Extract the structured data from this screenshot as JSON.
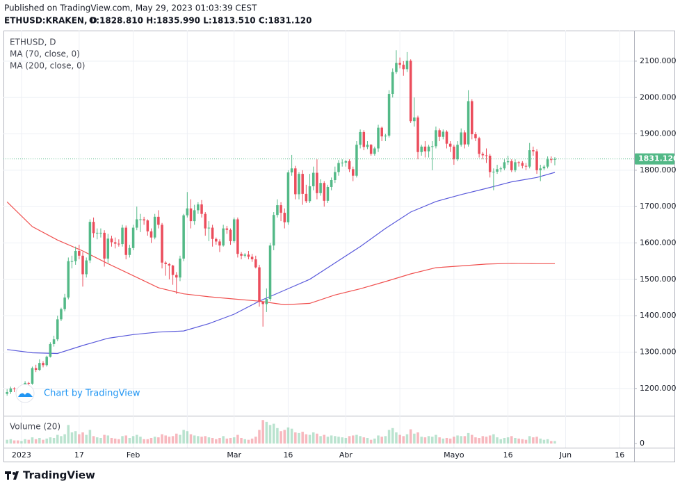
{
  "header": {
    "published": "Published on TradingView.com, May 29, 2023 01:03:39 CEST",
    "symbol": "ETHUSD:KRAKEN, D",
    "ohlc": "O:1828.810 H:1835.990 L:1813.510 C:1831.120"
  },
  "chart_data": {
    "type": "candlestick",
    "legend_symbol": "ETHUSD, D",
    "categories": [
      "2022-12-28",
      "2022-12-29",
      "2022-12-30",
      "2022-12-31",
      "2023-01-01",
      "2023-01-02",
      "2023-01-03",
      "2023-01-04",
      "2023-01-05",
      "2023-01-06",
      "2023-01-07",
      "2023-01-08",
      "2023-01-09",
      "2023-01-10",
      "2023-01-11",
      "2023-01-12",
      "2023-01-13",
      "2023-01-14",
      "2023-01-15",
      "2023-01-16",
      "2023-01-17",
      "2023-01-18",
      "2023-01-19",
      "2023-01-20",
      "2023-01-21",
      "2023-01-22",
      "2023-01-23",
      "2023-01-24",
      "2023-01-25",
      "2023-01-26",
      "2023-01-27",
      "2023-01-28",
      "2023-01-29",
      "2023-01-30",
      "2023-01-31",
      "2023-02-01",
      "2023-02-02",
      "2023-02-03",
      "2023-02-04",
      "2023-02-05",
      "2023-02-06",
      "2023-02-07",
      "2023-02-08",
      "2023-02-09",
      "2023-02-10",
      "2023-02-11",
      "2023-02-12",
      "2023-02-13",
      "2023-02-14",
      "2023-02-15",
      "2023-02-16",
      "2023-02-17",
      "2023-02-18",
      "2023-02-19",
      "2023-02-20",
      "2023-02-21",
      "2023-02-22",
      "2023-02-23",
      "2023-02-24",
      "2023-02-25",
      "2023-02-26",
      "2023-02-27",
      "2023-02-28",
      "2023-03-01",
      "2023-03-02",
      "2023-03-03",
      "2023-03-04",
      "2023-03-05",
      "2023-03-06",
      "2023-03-07",
      "2023-03-08",
      "2023-03-09",
      "2023-03-10",
      "2023-03-11",
      "2023-03-12",
      "2023-03-13",
      "2023-03-14",
      "2023-03-15",
      "2023-03-16",
      "2023-03-17",
      "2023-03-18",
      "2023-03-19",
      "2023-03-20",
      "2023-03-21",
      "2023-03-22",
      "2023-03-23",
      "2023-03-24",
      "2023-03-25",
      "2023-03-26",
      "2023-03-27",
      "2023-03-28",
      "2023-03-29",
      "2023-03-30",
      "2023-03-31",
      "2023-04-01",
      "2023-04-02",
      "2023-04-03",
      "2023-04-04",
      "2023-04-05",
      "2023-04-06",
      "2023-04-07",
      "2023-04-08",
      "2023-04-09",
      "2023-04-10",
      "2023-04-11",
      "2023-04-12",
      "2023-04-13",
      "2023-04-14",
      "2023-04-15",
      "2023-04-16",
      "2023-04-17",
      "2023-04-18",
      "2023-04-19",
      "2023-04-20",
      "2023-04-21",
      "2023-04-22",
      "2023-04-23",
      "2023-04-24",
      "2023-04-25",
      "2023-04-26",
      "2023-04-27",
      "2023-04-28",
      "2023-04-29",
      "2023-04-30",
      "2023-05-01",
      "2023-05-02",
      "2023-05-03",
      "2023-05-04",
      "2023-05-05",
      "2023-05-06",
      "2023-05-07",
      "2023-05-08",
      "2023-05-09",
      "2023-05-10",
      "2023-05-11",
      "2023-05-12",
      "2023-05-13",
      "2023-05-14",
      "2023-05-15",
      "2023-05-16",
      "2023-05-17",
      "2023-05-18",
      "2023-05-19",
      "2023-05-20",
      "2023-05-21",
      "2023-05-22",
      "2023-05-23",
      "2023-05-24",
      "2023-05-25",
      "2023-05-26",
      "2023-05-27",
      "2023-05-28",
      "2023-05-29"
    ],
    "open": [
      1185,
      1190,
      1200,
      1198,
      1196,
      1200,
      1215,
      1213,
      1256,
      1251,
      1270,
      1264,
      1287,
      1322,
      1335,
      1390,
      1418,
      1450,
      1550,
      1550,
      1578,
      1565,
      1514,
      1552,
      1658,
      1627,
      1628,
      1628,
      1557,
      1612,
      1602,
      1598,
      1597,
      1642,
      1567,
      1586,
      1642,
      1665,
      1665,
      1662,
      1632,
      1615,
      1672,
      1650,
      1546,
      1542,
      1538,
      1512,
      1505,
      1557,
      1676,
      1695,
      1660,
      1690,
      1706,
      1680,
      1640,
      1642,
      1611,
      1604,
      1593,
      1640,
      1636,
      1605,
      1665,
      1570,
      1565,
      1568,
      1562,
      1555,
      1533,
      1438,
      1432,
      1446,
      1593,
      1677,
      1704,
      1683,
      1657,
      1794,
      1805,
      1734,
      1790,
      1735,
      1715,
      1756,
      1793,
      1737,
      1765,
      1716,
      1754,
      1773,
      1795,
      1820,
      1821,
      1825,
      1803,
      1785,
      1870,
      1905,
      1864,
      1870,
      1845,
      1860,
      1917,
      1893,
      1895,
      2010,
      2070,
      2095,
      2090,
      2078,
      2101,
      1935,
      1945,
      1850,
      1865,
      1852,
      1865,
      1866,
      1910,
      1892,
      1906,
      1873,
      1865,
      1830,
      1870,
      1904,
      1871,
      1990,
      1899,
      1888,
      1845,
      1841,
      1840,
      1795,
      1796,
      1803,
      1805,
      1822,
      1825,
      1800,
      1822,
      1820,
      1812,
      1810,
      1855,
      1852,
      1800,
      1805,
      1810,
      1830,
      1828.81
    ],
    "high": [
      1198,
      1205,
      1203,
      1200,
      1203,
      1220,
      1218,
      1260,
      1265,
      1280,
      1275,
      1290,
      1327,
      1345,
      1400,
      1422,
      1460,
      1560,
      1565,
      1590,
      1595,
      1575,
      1560,
      1665,
      1670,
      1640,
      1640,
      1635,
      1625,
      1620,
      1615,
      1610,
      1650,
      1648,
      1595,
      1650,
      1700,
      1680,
      1672,
      1665,
      1640,
      1680,
      1690,
      1655,
      1550,
      1545,
      1540,
      1520,
      1565,
      1680,
      1740,
      1720,
      1705,
      1712,
      1718,
      1685,
      1660,
      1650,
      1615,
      1610,
      1650,
      1647,
      1640,
      1670,
      1670,
      1575,
      1572,
      1578,
      1570,
      1565,
      1540,
      1440,
      1475,
      1600,
      1685,
      1720,
      1712,
      1695,
      1800,
      1842,
      1812,
      1795,
      1800,
      1760,
      1790,
      1810,
      1830,
      1775,
      1770,
      1760,
      1780,
      1810,
      1828,
      1830,
      1828,
      1830,
      1810,
      1880,
      1912,
      1910,
      1880,
      1872,
      1865,
      1925,
      1920,
      1900,
      2020,
      2080,
      2130,
      2110,
      2100,
      2125,
      2105,
      2000,
      1950,
      1870,
      1880,
      1870,
      1880,
      1920,
      1915,
      1912,
      1910,
      1880,
      1870,
      1880,
      1915,
      1910,
      2020,
      1995,
      1905,
      1892,
      1850,
      1860,
      1845,
      1805,
      1815,
      1810,
      1830,
      1840,
      1830,
      1830,
      1825,
      1825,
      1820,
      1875,
      1865,
      1858,
      1815,
      1815,
      1838,
      1838,
      1835.99
    ],
    "low": [
      1180,
      1185,
      1190,
      1190,
      1192,
      1195,
      1205,
      1210,
      1245,
      1248,
      1258,
      1260,
      1285,
      1315,
      1330,
      1385,
      1412,
      1445,
      1530,
      1540,
      1555,
      1480,
      1505,
      1545,
      1615,
      1610,
      1615,
      1535,
      1545,
      1590,
      1585,
      1590,
      1590,
      1555,
      1560,
      1580,
      1635,
      1630,
      1650,
      1620,
      1600,
      1610,
      1640,
      1530,
      1510,
      1500,
      1485,
      1460,
      1495,
      1550,
      1670,
      1640,
      1650,
      1680,
      1670,
      1620,
      1605,
      1590,
      1595,
      1575,
      1590,
      1625,
      1595,
      1600,
      1560,
      1555,
      1560,
      1555,
      1548,
      1530,
      1425,
      1370,
      1410,
      1440,
      1580,
      1670,
      1660,
      1640,
      1650,
      1785,
      1720,
      1720,
      1705,
      1710,
      1710,
      1745,
      1720,
      1730,
      1700,
      1710,
      1745,
      1765,
      1785,
      1810,
      1810,
      1795,
      1770,
      1780,
      1860,
      1855,
      1858,
      1840,
      1840,
      1850,
      1880,
      1880,
      1890,
      2000,
      2065,
      2080,
      2060,
      2070,
      1930,
      1920,
      1830,
      1840,
      1835,
      1835,
      1800,
      1860,
      1880,
      1885,
      1860,
      1850,
      1815,
      1825,
      1865,
      1860,
      1865,
      1885,
      1880,
      1835,
      1830,
      1820,
      1780,
      1745,
      1790,
      1795,
      1800,
      1815,
      1795,
      1795,
      1810,
      1805,
      1800,
      1805,
      1840,
      1790,
      1770,
      1800,
      1805,
      1820,
      1813.51
    ],
    "close": [
      1190,
      1200,
      1198,
      1196,
      1200,
      1215,
      1213,
      1256,
      1251,
      1270,
      1264,
      1287,
      1322,
      1335,
      1390,
      1418,
      1450,
      1550,
      1550,
      1578,
      1565,
      1514,
      1552,
      1658,
      1627,
      1628,
      1628,
      1557,
      1612,
      1602,
      1598,
      1597,
      1642,
      1567,
      1586,
      1642,
      1665,
      1665,
      1662,
      1632,
      1615,
      1672,
      1650,
      1546,
      1542,
      1538,
      1512,
      1505,
      1557,
      1676,
      1695,
      1660,
      1690,
      1706,
      1680,
      1640,
      1642,
      1611,
      1604,
      1593,
      1640,
      1636,
      1605,
      1665,
      1570,
      1565,
      1568,
      1562,
      1555,
      1533,
      1438,
      1432,
      1446,
      1593,
      1677,
      1704,
      1683,
      1657,
      1794,
      1805,
      1734,
      1790,
      1735,
      1715,
      1756,
      1793,
      1737,
      1765,
      1716,
      1754,
      1773,
      1795,
      1820,
      1821,
      1825,
      1803,
      1785,
      1870,
      1905,
      1864,
      1870,
      1845,
      1860,
      1917,
      1893,
      1895,
      2010,
      2070,
      2095,
      2090,
      2078,
      2101,
      1935,
      1945,
      1850,
      1865,
      1852,
      1865,
      1866,
      1910,
      1892,
      1906,
      1873,
      1865,
      1830,
      1870,
      1904,
      1871,
      1990,
      1899,
      1888,
      1845,
      1841,
      1840,
      1795,
      1796,
      1803,
      1805,
      1822,
      1825,
      1800,
      1822,
      1820,
      1812,
      1810,
      1855,
      1852,
      1800,
      1805,
      1810,
      1830,
      1828.81,
      1831.12
    ],
    "up_color": "#53b987",
    "down_color": "#eb4d5c",
    "xlim": [
      "2022-12-27",
      "2023-06-20"
    ],
    "xticks": [
      {
        "value": "2023-01-01",
        "label": "2023"
      },
      {
        "value": "2023-01-17",
        "label": "17"
      },
      {
        "value": "2023-02-01",
        "label": "Feb"
      },
      {
        "value": "2023-02-16",
        "label": null
      },
      {
        "value": "2023-03-01",
        "label": "Mar"
      },
      {
        "value": "2023-03-16",
        "label": "16"
      },
      {
        "value": "2023-04-01",
        "label": "Abr"
      },
      {
        "value": "2023-04-16",
        "label": null
      },
      {
        "value": "2023-05-01",
        "label": "Mayo"
      },
      {
        "value": "2023-05-16",
        "label": "16"
      },
      {
        "value": "2023-06-01",
        "label": "Jun"
      },
      {
        "value": "2023-06-16",
        "label": "16"
      }
    ],
    "ylim": [
      1125,
      2184
    ],
    "yticks": [
      {
        "value": 1200,
        "label": "1200.000"
      },
      {
        "value": 1300,
        "label": "1300.000"
      },
      {
        "value": 1400,
        "label": "1400.000"
      },
      {
        "value": 1500,
        "label": "1500.000"
      },
      {
        "value": 1600,
        "label": "1600.000"
      },
      {
        "value": 1700,
        "label": "1700.000"
      },
      {
        "value": 1800,
        "label": "1800.000"
      },
      {
        "value": 1900,
        "label": "1900.000"
      },
      {
        "value": 2000,
        "label": "2000.000"
      },
      {
        "value": 2100,
        "label": "2100.000"
      }
    ],
    "grid": true,
    "price_line": {
      "value": 1831.12,
      "label": "1831.120"
    },
    "overlays": [
      {
        "name": "MA (70, close, 0)",
        "color": "#5a5adb",
        "x": [
          "2022-12-28",
          "2023-01-04",
          "2023-01-11",
          "2023-01-18",
          "2023-01-25",
          "2023-02-01",
          "2023-02-08",
          "2023-02-15",
          "2023-02-22",
          "2023-03-01",
          "2023-03-08",
          "2023-03-15",
          "2023-03-22",
          "2023-03-29",
          "2023-04-05",
          "2023-04-12",
          "2023-04-19",
          "2023-04-26",
          "2023-05-03",
          "2023-05-10",
          "2023-05-17",
          "2023-05-24",
          "2023-05-29"
        ],
        "values": [
          1307,
          1298,
          1296,
          1318,
          1338,
          1348,
          1355,
          1358,
          1378,
          1404,
          1440,
          1470,
          1500,
          1545,
          1590,
          1640,
          1685,
          1714,
          1733,
          1750,
          1768,
          1780,
          1794
        ]
      },
      {
        "name": "MA (200, close, 0)",
        "color": "#f0504f",
        "x": [
          "2022-12-28",
          "2023-01-04",
          "2023-01-11",
          "2023-01-18",
          "2023-01-25",
          "2023-02-01",
          "2023-02-08",
          "2023-02-15",
          "2023-02-22",
          "2023-03-01",
          "2023-03-08",
          "2023-03-15",
          "2023-03-22",
          "2023-03-29",
          "2023-04-05",
          "2023-04-12",
          "2023-04-19",
          "2023-04-26",
          "2023-05-03",
          "2023-05-10",
          "2023-05-17",
          "2023-05-24",
          "2023-05-29"
        ],
        "values": [
          1713,
          1645,
          1608,
          1578,
          1543,
          1510,
          1477,
          1460,
          1452,
          1446,
          1440,
          1430,
          1434,
          1457,
          1474,
          1494,
          1515,
          1532,
          1537,
          1542,
          1544,
          1543,
          1543
        ]
      }
    ],
    "volume": {
      "name": "Volume (20)",
      "ylim": [
        0,
        45
      ],
      "yticks": [
        0
      ],
      "values": [
        6,
        7,
        5,
        5,
        4,
        7,
        6,
        10,
        7,
        9,
        6,
        8,
        10,
        9,
        14,
        12,
        15,
        30,
        18,
        20,
        15,
        18,
        14,
        22,
        12,
        10,
        9,
        14,
        13,
        9,
        8,
        7,
        12,
        13,
        9,
        12,
        14,
        11,
        7,
        7,
        9,
        11,
        10,
        15,
        13,
        11,
        12,
        16,
        14,
        22,
        20,
        15,
        13,
        12,
        11,
        12,
        10,
        9,
        7,
        9,
        12,
        8,
        9,
        10,
        14,
        9,
        7,
        6,
        8,
        11,
        22,
        38,
        35,
        30,
        32,
        25,
        20,
        22,
        26,
        24,
        18,
        17,
        19,
        15,
        14,
        18,
        16,
        12,
        14,
        11,
        13,
        12,
        11,
        10,
        9,
        12,
        13,
        14,
        12,
        10,
        9,
        6,
        8,
        13,
        11,
        12,
        22,
        25,
        18,
        14,
        12,
        15,
        23,
        16,
        18,
        11,
        10,
        12,
        11,
        14,
        10,
        8,
        9,
        8,
        11,
        13,
        12,
        12,
        17,
        14,
        10,
        9,
        12,
        11,
        13,
        15,
        10,
        7,
        9,
        10,
        12,
        9,
        8,
        7,
        6,
        12,
        10,
        11,
        8,
        6,
        7,
        4,
        4
      ]
    }
  },
  "branding": {
    "chart_by": "Chart by TradingView",
    "footer": "TradingView"
  }
}
